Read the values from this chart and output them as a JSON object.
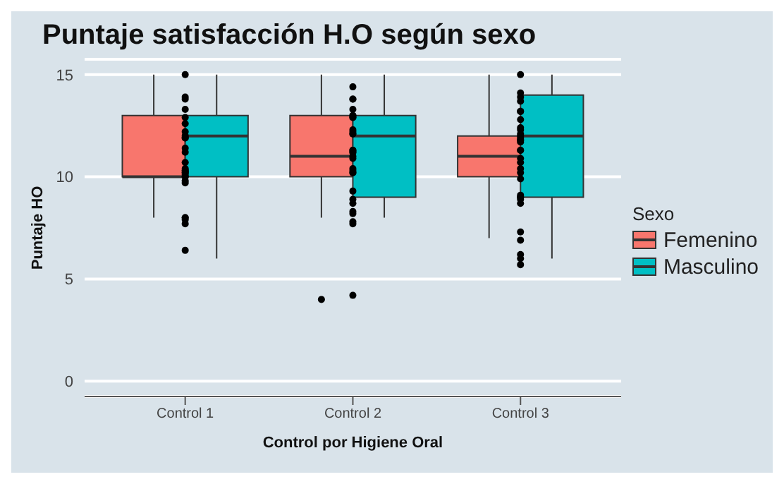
{
  "chart_data": {
    "type": "box",
    "title": "Puntaje satisfacción H.O según sexo",
    "xlabel": "Control por Higiene Oral",
    "ylabel": "Puntaje HO",
    "legend_title": "Sexo",
    "legend": "right",
    "grid": "y",
    "categories": [
      "Control 1",
      "Control 2",
      "Control 3"
    ],
    "ylim": [
      -0.75,
      15.75
    ],
    "yticks": [
      0,
      5,
      10,
      15
    ],
    "series": [
      {
        "name": "Femenino",
        "color": "#f8766d",
        "boxes": [
          {
            "low": 8,
            "q1": 10,
            "median": 10,
            "q3": 13,
            "high": 15
          },
          {
            "low": 8,
            "q1": 10,
            "median": 11,
            "q3": 13,
            "high": 15,
            "outliers": [
              4
            ]
          },
          {
            "low": 7,
            "q1": 10,
            "median": 11,
            "q3": 12,
            "high": 15
          }
        ]
      },
      {
        "name": "Masculino",
        "color": "#00bfc4",
        "boxes": [
          {
            "low": 6,
            "q1": 10,
            "median": 12,
            "q3": 13,
            "high": 15
          },
          {
            "low": 8,
            "q1": 9,
            "median": 12,
            "q3": 13,
            "high": 15
          },
          {
            "low": 6,
            "q1": 9,
            "median": 12,
            "q3": 14,
            "high": 15
          }
        ]
      },
      {
        "type": "scatter",
        "color": "#000000",
        "x": [
          "Control 1",
          "Control 1",
          "Control 1",
          "Control 1",
          "Control 1",
          "Control 1",
          "Control 1",
          "Control 1",
          "Control 1",
          "Control 1",
          "Control 1",
          "Control 1",
          "Control 1",
          "Control 1",
          "Control 1",
          "Control 1",
          "Control 1",
          "Control 1",
          "Control 1",
          "Control 1",
          "Control 1",
          "Control 1",
          "Control 1",
          "Control 1",
          "Control 1",
          "Control 1",
          "Control 1",
          "Control 1",
          "Control 2",
          "Control 2",
          "Control 2",
          "Control 2",
          "Control 2",
          "Control 2",
          "Control 2",
          "Control 2",
          "Control 2",
          "Control 2",
          "Control 2",
          "Control 2",
          "Control 2",
          "Control 2",
          "Control 2",
          "Control 2",
          "Control 2",
          "Control 2",
          "Control 2",
          "Control 2",
          "Control 2",
          "Control 2",
          "Control 2",
          "Control 2",
          "Control 2",
          "Control 2",
          "Control 2",
          "Control 2",
          "Control 2",
          "Control 2",
          "Control 3",
          "Control 3",
          "Control 3",
          "Control 3",
          "Control 3",
          "Control 3",
          "Control 3",
          "Control 3",
          "Control 3",
          "Control 3",
          "Control 3",
          "Control 3",
          "Control 3",
          "Control 3",
          "Control 3",
          "Control 3",
          "Control 3",
          "Control 3",
          "Control 3",
          "Control 3",
          "Control 3",
          "Control 3",
          "Control 3",
          "Control 3",
          "Control 3",
          "Control 3",
          "Control 3",
          "Control 3",
          "Control 3",
          "Control 3",
          "Control 3",
          "Control 3"
        ],
        "values": [
          15,
          13.3,
          13.8,
          13.9,
          12.9,
          12.6,
          12.2,
          11.4,
          11.2,
          11.9,
          11.9,
          12,
          10.7,
          10.3,
          10.4,
          9.8,
          10,
          10,
          10.2,
          10.2,
          10.3,
          10.1,
          9.7,
          8,
          8,
          7.9,
          7.7,
          6.4,
          14.4,
          13.8,
          13.8,
          13.3,
          13,
          13,
          12.9,
          12.9,
          12.1,
          12.2,
          12.3,
          12.1,
          11.3,
          11.3,
          11.2,
          11.2,
          10.9,
          11,
          10.4,
          10.3,
          10.2,
          10.2,
          9.3,
          8.9,
          8.7,
          8.3,
          8.2,
          7.8,
          7.7,
          4.2,
          15,
          14.1,
          13.9,
          13.7,
          13.2,
          13.2,
          12.8,
          12.4,
          12.3,
          12.1,
          12,
          11.8,
          11.7,
          11.8,
          11.9,
          11.3,
          11.3,
          10.9,
          10.7,
          10.4,
          10.2,
          9.9,
          9.1,
          9,
          8.9,
          8.7,
          9,
          7.3,
          6.9,
          6.2,
          6,
          5.7
        ]
      }
    ]
  }
}
